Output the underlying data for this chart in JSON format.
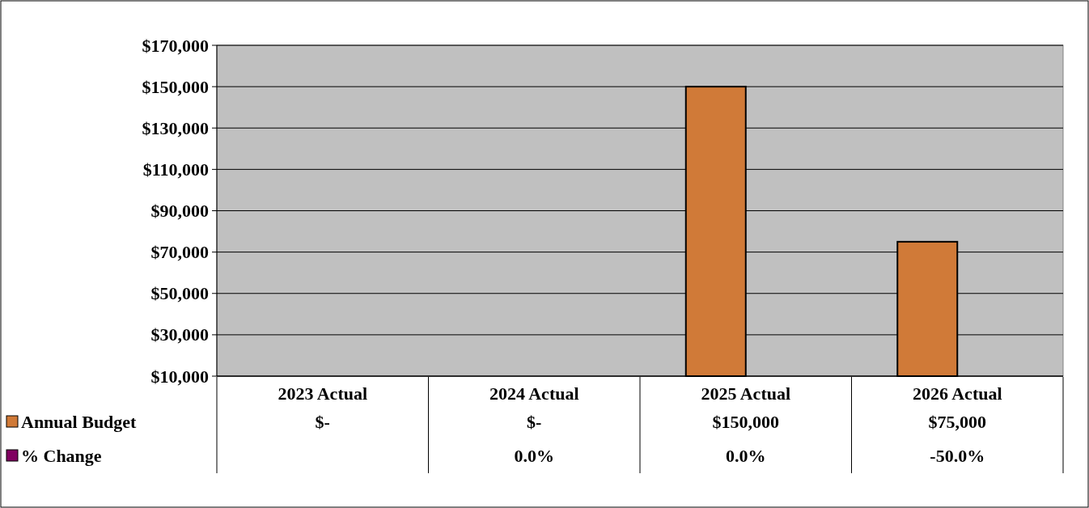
{
  "chart_data": {
    "type": "bar",
    "categories": [
      "2023 Actual",
      "2024 Actual",
      "2025 Actual",
      "2026 Actual"
    ],
    "series": [
      {
        "name": "Annual Budget",
        "color": "#d07a38",
        "values": [
          null,
          null,
          150000,
          75000
        ],
        "value_labels": [
          "$-",
          "$-",
          "$150,000",
          "$75,000"
        ]
      },
      {
        "name": "% Change",
        "color": "#800060",
        "values": [
          null,
          null,
          null,
          null
        ],
        "value_labels": [
          null,
          "0.0%",
          "0.0%",
          "-50.0%"
        ]
      }
    ],
    "ylim": [
      10000,
      170000
    ],
    "yticks": [
      {
        "value": 10000,
        "label": "$10,000"
      },
      {
        "value": 30000,
        "label": "$30,000"
      },
      {
        "value": 50000,
        "label": "$50,000"
      },
      {
        "value": 70000,
        "label": "$70,000"
      },
      {
        "value": 90000,
        "label": "$90,000"
      },
      {
        "value": 110000,
        "label": "$110,000"
      },
      {
        "value": 130000,
        "label": "$130,000"
      },
      {
        "value": 150000,
        "label": "$150,000"
      },
      {
        "value": 170000,
        "label": "$170,000"
      }
    ],
    "grid": "y",
    "legend": "bottom"
  }
}
